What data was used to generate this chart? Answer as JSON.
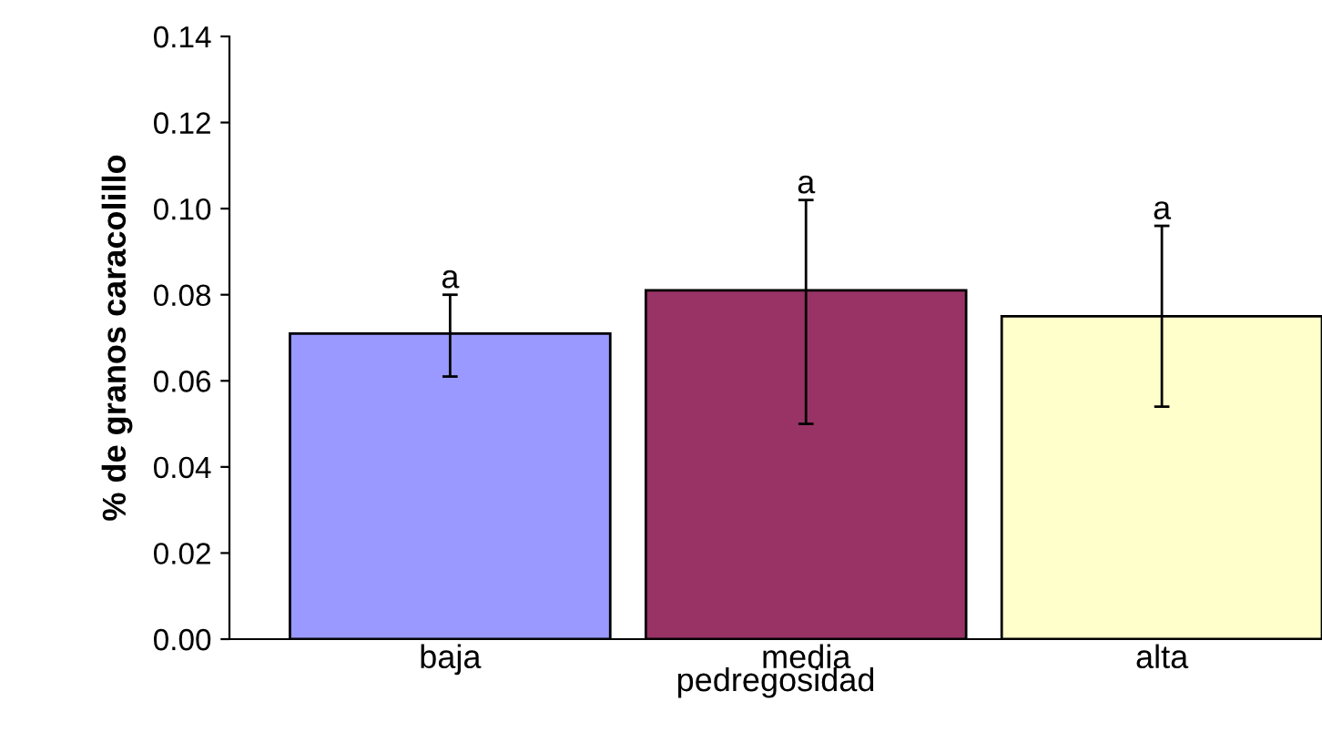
{
  "chart_data": {
    "type": "bar",
    "xlabel": "pedregosidad",
    "ylabel": "% de granos caracolillo",
    "categories": [
      "baja",
      "media",
      "alta"
    ],
    "values": [
      0.071,
      0.081,
      0.075
    ],
    "colors": [
      "#9999ff",
      "#993366",
      "#ffffcc"
    ],
    "errors": [
      [
        0.061,
        0.08
      ],
      [
        0.05,
        0.102
      ],
      [
        0.054,
        0.096
      ]
    ],
    "ylim": [
      0,
      0.14
    ],
    "yticks": [
      {
        "value": 0,
        "label": "0.00"
      },
      {
        "value": 0.02,
        "label": "0.02"
      },
      {
        "value": 0.04,
        "label": "0.04"
      },
      {
        "value": 0.06,
        "label": "0.06"
      },
      {
        "value": 0.08,
        "label": "0.08"
      },
      {
        "value": 0.1,
        "label": "0.10"
      },
      {
        "value": 0.12,
        "label": "0.12"
      },
      {
        "value": 0.14,
        "label": "0.14"
      }
    ],
    "annotations": [
      {
        "text": "a",
        "x": "baja",
        "y": 0.08
      },
      {
        "text": "a",
        "x": "media",
        "y": 0.102
      },
      {
        "text": "a",
        "x": "alta",
        "y": 0.096
      }
    ],
    "grid": false,
    "legend": false
  }
}
